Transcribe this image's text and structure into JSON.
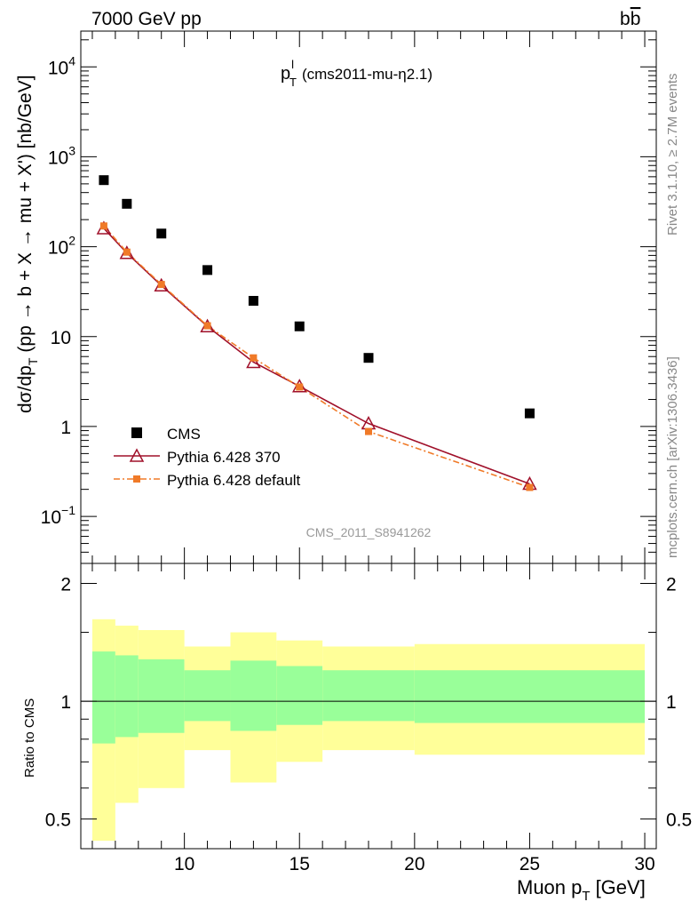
{
  "header": {
    "energy_label": "7000 GeV pp",
    "process_base": "b",
    "process_bar": "b"
  },
  "side_text": {
    "rivet": "Rivet 3.1.10, ≥ 2.7M events",
    "mcplots": "mcplots.cern.ch [arXiv:1306.3436]"
  },
  "chart_data": [
    {
      "type": "line",
      "panel": "main",
      "title_main": "p",
      "title_sup": "l",
      "title_sub": "T",
      "title_rest": "(cms2011-mu-η2.1)",
      "ylabel_main": "dσ/dp",
      "ylabel_sub": "T",
      "ylabel_rest": "(pp → b + X → mu + X') [nb/GeV]",
      "analysis_id": "CMS_2011_S8941262",
      "yscale": "log",
      "xlim": [
        5.5,
        30.5
      ],
      "ylim": [
        0.03,
        25000
      ],
      "ytick_labels": [
        {
          "value": 0.1,
          "base": "10",
          "exp": "−1"
        },
        {
          "value": 1,
          "base": "1",
          "exp": ""
        },
        {
          "value": 10,
          "base": "10",
          "exp": ""
        },
        {
          "value": 100,
          "base": "10",
          "exp": "2"
        },
        {
          "value": 1000,
          "base": "10",
          "exp": "3"
        },
        {
          "value": 10000,
          "base": "10",
          "exp": "4"
        }
      ],
      "legend_position": "bottom-left",
      "series": [
        {
          "name": "CMS",
          "style": "square-marker",
          "color": "#000000",
          "x": [
            6.5,
            7.5,
            9.0,
            11.0,
            13.0,
            15.0,
            18.0,
            25.0
          ],
          "y": [
            550,
            300,
            140,
            55,
            25,
            13,
            5.8,
            1.4
          ]
        },
        {
          "name": "Pythia 6.428 370",
          "style": "solid-line-triangle",
          "color": "#a0102a",
          "x": [
            6.5,
            7.5,
            9.0,
            11.0,
            13.0,
            15.0,
            18.0,
            25.0
          ],
          "y": [
            160,
            85,
            37,
            13,
            5.2,
            2.8,
            1.08,
            0.23
          ]
        },
        {
          "name": "Pythia 6.428 default",
          "style": "dashdot-line-square",
          "color": "#f07a28",
          "x": [
            6.5,
            7.5,
            9.0,
            11.0,
            13.0,
            15.0,
            18.0,
            25.0
          ],
          "y": [
            170,
            87,
            38,
            13.2,
            5.8,
            2.75,
            0.88,
            0.21
          ]
        }
      ]
    },
    {
      "type": "area",
      "panel": "ratio",
      "ylabel": "Ratio to CMS",
      "xlabel_main": "Muon p",
      "xlabel_sub": "T",
      "xlabel_rest": "[GeV]",
      "xlim": [
        5.5,
        30.5
      ],
      "ylim": [
        0.42,
        2.25
      ],
      "yscale": "log",
      "xtick_labels": [
        "10",
        "15",
        "20",
        "25",
        "30"
      ],
      "ytick_labels": [
        "0.5",
        "1",
        "2"
      ],
      "reference_line": 1,
      "bins": [
        6,
        7,
        8,
        10,
        12,
        14,
        16,
        20,
        30
      ],
      "band_yellow_low": [
        0.44,
        0.55,
        0.6,
        0.75,
        0.62,
        0.7,
        0.75,
        0.73
      ],
      "band_yellow_high": [
        1.62,
        1.56,
        1.52,
        1.38,
        1.5,
        1.43,
        1.38,
        1.4
      ],
      "band_green_low": [
        0.78,
        0.81,
        0.83,
        0.89,
        0.84,
        0.87,
        0.89,
        0.88
      ],
      "band_green_high": [
        1.34,
        1.31,
        1.28,
        1.2,
        1.27,
        1.23,
        1.2,
        1.2
      ],
      "colors": {
        "yellow": "#ffff99",
        "green": "#99ff99"
      }
    }
  ]
}
